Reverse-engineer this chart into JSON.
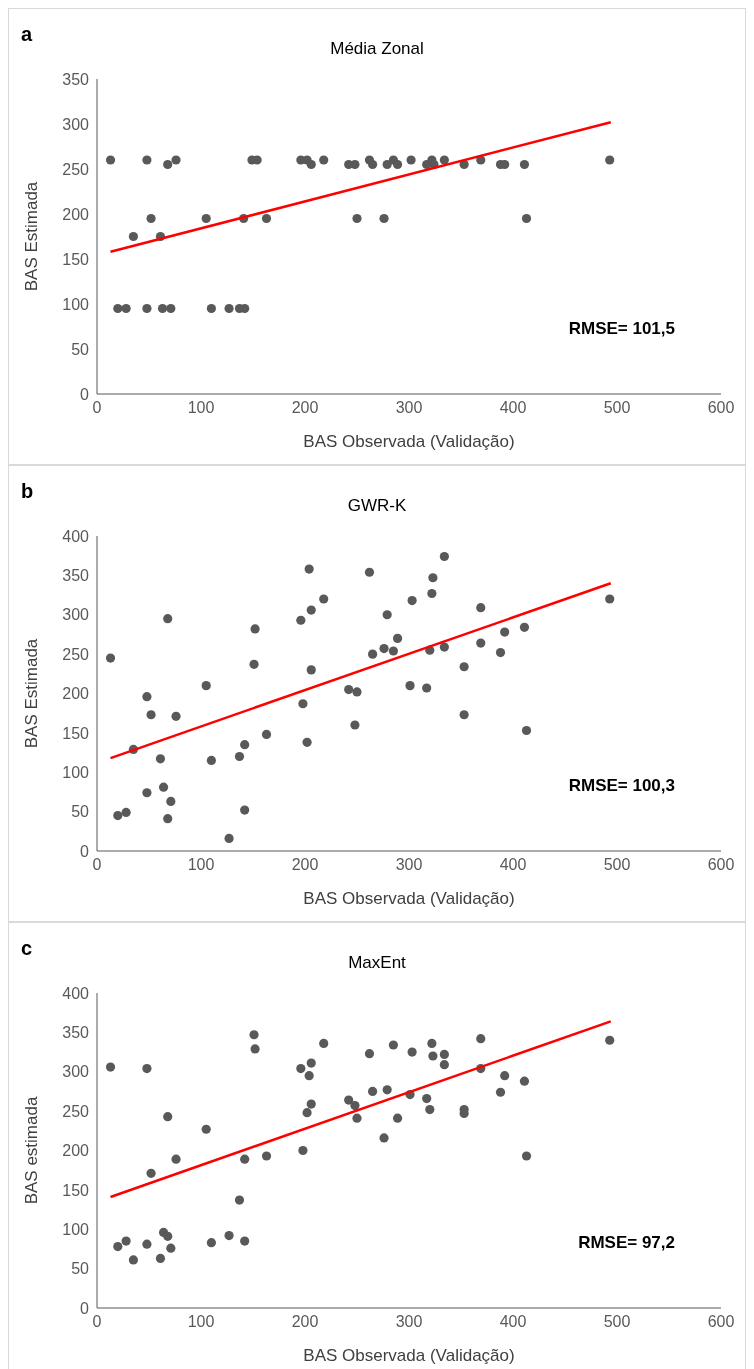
{
  "chart_data": [
    {
      "type": "scatter",
      "title": "Média Zonal",
      "xlabel": "BAS Observada (Validação)",
      "ylabel": "BAS Estimada",
      "annotations": [
        "a",
        "RMSE= 101,5"
      ],
      "xlim": [
        0,
        600
      ],
      "xticks": [
        0,
        100,
        200,
        300,
        400,
        500,
        600
      ],
      "ylim": [
        0,
        350
      ],
      "yticks": [
        0,
        50,
        100,
        150,
        200,
        250,
        300,
        350
      ],
      "grid": false,
      "marker": "circle",
      "series": [
        {
          "color": "#595959",
          "x": [
            20,
            28,
            48,
            63,
            71,
            110,
            127,
            137,
            142,
            35,
            61,
            52,
            105,
            141,
            163,
            250,
            276,
            413,
            13,
            48,
            68,
            76,
            149,
            154,
            196,
            202,
            206,
            218,
            242,
            248,
            262,
            265,
            279,
            285,
            289,
            302,
            317,
            322,
            324,
            334,
            353,
            369,
            388,
            392,
            411,
            493
          ],
          "values": [
            95,
            95,
            95,
            95,
            95,
            95,
            95,
            95,
            95,
            175,
            175,
            195,
            195,
            195,
            195,
            195,
            195,
            195,
            260,
            260,
            255,
            260,
            260,
            260,
            260,
            260,
            255,
            260,
            255,
            255,
            260,
            255,
            255,
            260,
            255,
            260,
            255,
            260,
            255,
            260,
            255,
            260,
            255,
            255,
            255,
            260
          ]
        },
        {
          "type": "line",
          "marker": "none",
          "color": "#ff0000",
          "x": [
            13,
            494
          ],
          "values": [
            158,
            302
          ]
        }
      ]
    },
    {
      "type": "scatter",
      "title": "GWR-K",
      "xlabel": "BAS Observada (Validação)",
      "ylabel": "BAS Estimada",
      "annotations": [
        "b",
        "RMSE= 100,3"
      ],
      "xlim": [
        0,
        600
      ],
      "xticks": [
        0,
        100,
        200,
        300,
        400,
        500,
        600
      ],
      "ylim": [
        0,
        400
      ],
      "yticks": [
        0,
        50,
        100,
        150,
        200,
        250,
        300,
        350,
        400
      ],
      "grid": false,
      "marker": "circle",
      "series": [
        {
          "color": "#595959",
          "x": [
            13,
            20,
            28,
            35,
            48,
            48,
            52,
            61,
            64,
            68,
            71,
            68,
            76,
            105,
            110,
            127,
            137,
            142,
            142,
            151,
            152,
            163,
            196,
            198,
            202,
            204,
            206,
            206,
            218,
            242,
            250,
            248,
            262,
            265,
            276,
            279,
            285,
            289,
            301,
            303,
            317,
            320,
            322,
            323,
            334,
            334,
            353,
            353,
            369,
            369,
            388,
            392,
            411,
            413,
            493
          ],
          "values": [
            245,
            45,
            49,
            129,
            196,
            74,
            173,
            117,
            81,
            295,
            63,
            41,
            171,
            210,
            115,
            16,
            120,
            135,
            52,
            237,
            282,
            148,
            293,
            187,
            138,
            358,
            306,
            230,
            320,
            205,
            202,
            160,
            354,
            250,
            257,
            300,
            254,
            270,
            210,
            318,
            207,
            255,
            327,
            347,
            259,
            374,
            234,
            173,
            309,
            264,
            252,
            278,
            284,
            153,
            320
          ]
        },
        {
          "type": "line",
          "marker": "none",
          "color": "#ff0000",
          "x": [
            13,
            494
          ],
          "values": [
            118,
            340
          ]
        }
      ]
    },
    {
      "type": "scatter",
      "title": "MaxEnt",
      "xlabel": "BAS Observada (Validação)",
      "ylabel": "BAS estimada",
      "annotations": [
        "c",
        "RMSE= 97,2"
      ],
      "xlim": [
        0,
        600
      ],
      "xticks": [
        0,
        100,
        200,
        300,
        400,
        500,
        600
      ],
      "ylim": [
        0,
        400
      ],
      "yticks": [
        0,
        50,
        100,
        150,
        200,
        250,
        300,
        350,
        400
      ],
      "grid": false,
      "marker": "circle",
      "series": [
        {
          "color": "#595959",
          "x": [
            13,
            20,
            28,
            35,
            48,
            48,
            52,
            61,
            64,
            68,
            68,
            71,
            76,
            105,
            110,
            127,
            137,
            142,
            142,
            151,
            152,
            163,
            196,
            198,
            202,
            204,
            206,
            206,
            218,
            242,
            248,
            250,
            262,
            265,
            276,
            279,
            285,
            289,
            301,
            303,
            317,
            320,
            322,
            323,
            334,
            334,
            353,
            353,
            369,
            369,
            388,
            392,
            411,
            413,
            493
          ],
          "values": [
            306,
            78,
            85,
            61,
            304,
            81,
            171,
            63,
            96,
            91,
            243,
            76,
            189,
            227,
            83,
            92,
            137,
            189,
            85,
            347,
            329,
            193,
            304,
            200,
            248,
            295,
            311,
            259,
            336,
            264,
            257,
            241,
            323,
            275,
            216,
            277,
            334,
            241,
            271,
            325,
            266,
            252,
            336,
            320,
            322,
            309,
            252,
            247,
            342,
            304,
            274,
            295,
            288,
            193,
            340
          ]
        },
        {
          "type": "line",
          "marker": "none",
          "color": "#ff0000",
          "x": [
            13,
            494
          ],
          "values": [
            141,
            364
          ]
        }
      ]
    }
  ]
}
